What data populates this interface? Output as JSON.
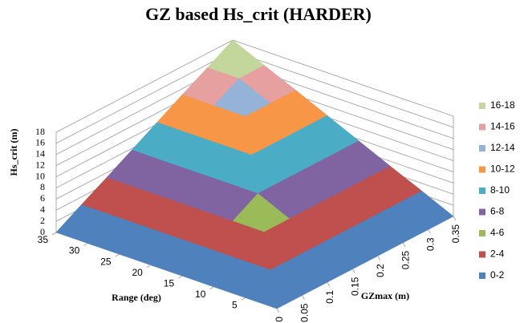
{
  "chart_data": {
    "type": "surface",
    "title": "GZ based Hs_crit (HARDER)",
    "x_label": "GZmax (m)",
    "y_label": "Range (deg)",
    "z_label": "Hs_crit (m)",
    "x": [
      0,
      0.05,
      0.1,
      0.15,
      0.2,
      0.25,
      0.3,
      0.35
    ],
    "y": [
      0,
      5,
      10,
      15,
      20,
      25,
      30,
      35
    ],
    "z": [
      [
        0,
        0,
        0,
        0,
        0,
        0,
        0,
        0
      ],
      [
        0,
        2.6,
        2.6,
        2.6,
        2.6,
        2.6,
        2.6,
        2.6
      ],
      [
        0,
        2.6,
        5.1,
        5.1,
        5.1,
        5.1,
        5.1,
        5.1
      ],
      [
        0,
        2.6,
        5.1,
        7.7,
        7.7,
        7.7,
        7.7,
        7.7
      ],
      [
        0,
        2.6,
        5.1,
        7.7,
        10.3,
        10.3,
        10.3,
        10.3
      ],
      [
        0,
        2.6,
        5.1,
        7.7,
        10.3,
        12.9,
        12.9,
        12.9
      ],
      [
        0,
        2.6,
        5.1,
        7.7,
        10.3,
        12.9,
        15.4,
        15.4
      ],
      [
        0,
        2.6,
        5.1,
        7.7,
        10.3,
        12.9,
        15.4,
        18
      ]
    ],
    "xlim": [
      0,
      0.35
    ],
    "ylim": [
      0,
      35
    ],
    "zlim": [
      0,
      18
    ],
    "xticks": [
      0,
      0.05,
      0.1,
      0.15,
      0.2,
      0.25,
      0.3,
      0.35
    ],
    "yticks": [
      5,
      10,
      15,
      20,
      25,
      30,
      35
    ],
    "zticks": [
      0,
      2,
      4,
      6,
      8,
      10,
      12,
      14,
      16,
      18
    ],
    "legend": [
      {
        "name": "0-2",
        "color": "#4f81bd"
      },
      {
        "name": "2-4",
        "color": "#c0504d"
      },
      {
        "name": "4-6",
        "color": "#9bbb59"
      },
      {
        "name": "6-8",
        "color": "#8064a2"
      },
      {
        "name": "8-10",
        "color": "#4bacc6"
      },
      {
        "name": "10-12",
        "color": "#f79646"
      },
      {
        "name": "12-14",
        "color": "#95b3d7"
      },
      {
        "name": "14-16",
        "color": "#e6a0a0"
      },
      {
        "name": "16-18",
        "color": "#c3d69b"
      }
    ],
    "legend_position": "right",
    "grid": true
  }
}
